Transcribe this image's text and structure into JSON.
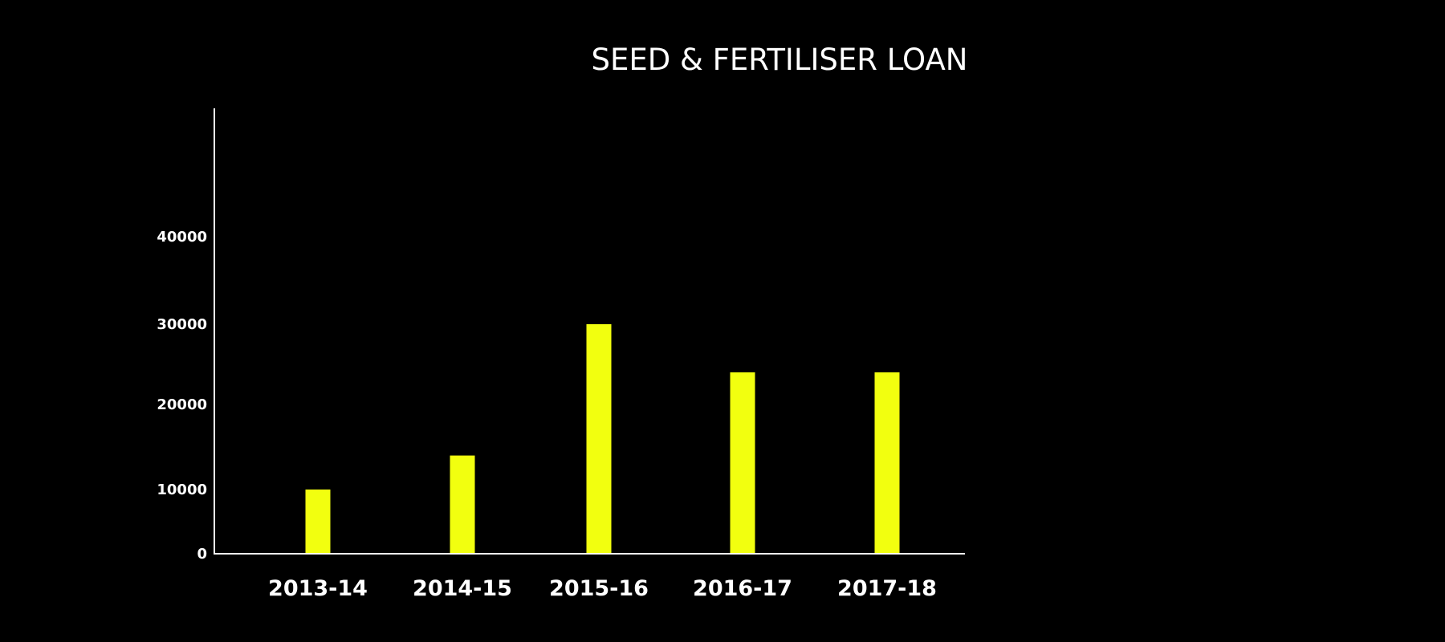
{
  "chart_data": {
    "type": "bar",
    "title": "SEED & FERTILISER LOAN",
    "categories": [
      "2013-14",
      "2014-15",
      "2015-16",
      "2016-17",
      "2017-18"
    ],
    "values": [
      10000,
      14000,
      30000,
      24000,
      24000
    ],
    "y_ticks": [
      {
        "value": 0,
        "label": "0"
      },
      {
        "value": 10000,
        "label": "10000"
      },
      {
        "value": 20000,
        "label": "20000"
      },
      {
        "value": 30000,
        "label": "30000"
      },
      {
        "value": 40000,
        "label": "40000"
      }
    ],
    "xlabel": "",
    "ylabel": "",
    "ylim": [
      0,
      40000
    ],
    "grid": false,
    "legend": "none",
    "bar_color": "#f2ff0f",
    "axis_color": "#ffffff",
    "background_color": "#000000",
    "text_color": "#ffffff"
  }
}
